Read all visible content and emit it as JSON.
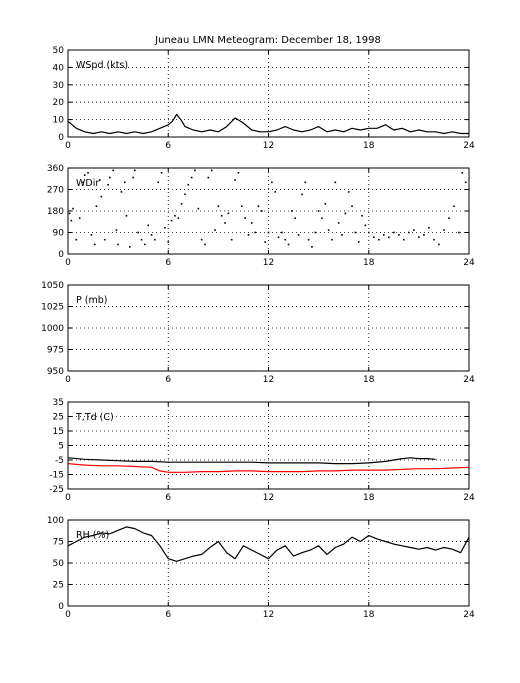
{
  "title": "Juneau LMN Meteogram:  December 18, 1998",
  "chart_data": [
    {
      "type": "line",
      "label": "WSpd (kts)",
      "xlim": [
        0,
        24
      ],
      "xticks": [
        0,
        6,
        12,
        18,
        24
      ],
      "ylim": [
        0,
        50
      ],
      "yticks": [
        0,
        10,
        20,
        30,
        40,
        50
      ],
      "grid": true,
      "series": [
        {
          "color": "#000000",
          "x": [
            0,
            0.5,
            1,
            1.5,
            2,
            2.5,
            3,
            3.5,
            4,
            4.5,
            5,
            5.5,
            6,
            6.25,
            6.5,
            6.75,
            7,
            7.5,
            8,
            8.5,
            9,
            9.5,
            10,
            10.5,
            11,
            11.5,
            12,
            12.5,
            13,
            13.5,
            14,
            14.5,
            15,
            15.5,
            16,
            16.5,
            17,
            17.5,
            18,
            18.5,
            19,
            19.5,
            20,
            20.5,
            21,
            21.5,
            22,
            22.5,
            23,
            23.5,
            24
          ],
          "y": [
            9,
            5,
            3,
            2,
            3,
            2,
            3,
            2,
            3,
            2,
            3,
            5,
            7,
            9,
            13,
            10,
            6,
            4,
            3,
            4,
            3,
            6,
            11,
            8,
            4,
            3,
            3,
            4,
            6,
            4,
            3,
            4,
            6,
            3,
            4,
            3,
            5,
            4,
            5,
            5,
            7,
            4,
            5,
            3,
            4,
            3,
            3,
            2,
            3,
            2,
            2
          ]
        }
      ]
    },
    {
      "type": "scatter",
      "label": "WDir",
      "xlim": [
        0,
        24
      ],
      "xticks": [
        0,
        6,
        12,
        18,
        24
      ],
      "ylim": [
        0,
        360
      ],
      "yticks": [
        0,
        90,
        180,
        270,
        360
      ],
      "grid": true,
      "series": [
        {
          "color": "#000000",
          "x": [
            0.1,
            0.2,
            0.3,
            0.5,
            0.7,
            0.9,
            1.0,
            1.2,
            1.4,
            1.6,
            1.7,
            1.9,
            2.0,
            2.2,
            2.4,
            2.5,
            2.7,
            2.9,
            3.0,
            3.2,
            3.4,
            3.5,
            3.7,
            3.9,
            4.0,
            4.2,
            4.4,
            4.6,
            4.8,
            5.0,
            5.2,
            5.4,
            5.6,
            5.8,
            6.0,
            6.2,
            6.4,
            6.6,
            6.8,
            7.0,
            7.2,
            7.4,
            7.6,
            7.8,
            8.0,
            8.2,
            8.4,
            8.6,
            8.8,
            9.0,
            9.2,
            9.4,
            9.6,
            9.8,
            10.0,
            10.2,
            10.4,
            10.6,
            10.8,
            11.0,
            11.2,
            11.4,
            11.6,
            11.8,
            12.0,
            12.2,
            12.4,
            12.6,
            12.8,
            13.0,
            13.2,
            13.4,
            13.6,
            13.8,
            14.0,
            14.2,
            14.4,
            14.6,
            14.8,
            15.0,
            15.2,
            15.4,
            15.6,
            15.8,
            16.0,
            16.2,
            16.4,
            16.6,
            16.8,
            17.0,
            17.2,
            17.4,
            17.6,
            17.8,
            18.0,
            18.3,
            18.6,
            18.9,
            19.2,
            19.5,
            19.8,
            20.1,
            20.4,
            20.7,
            21.0,
            21.3,
            21.6,
            21.9,
            22.2,
            22.5,
            22.8,
            23.1,
            23.4,
            23.6,
            23.8
          ],
          "y": [
            170,
            140,
            190,
            60,
            150,
            300,
            330,
            340,
            80,
            40,
            200,
            310,
            240,
            60,
            290,
            320,
            350,
            100,
            40,
            260,
            300,
            160,
            30,
            320,
            350,
            90,
            60,
            40,
            120,
            80,
            60,
            300,
            340,
            110,
            50,
            140,
            160,
            150,
            210,
            250,
            290,
            320,
            350,
            190,
            60,
            40,
            320,
            350,
            100,
            200,
            160,
            130,
            170,
            60,
            310,
            340,
            200,
            150,
            80,
            130,
            90,
            200,
            180,
            50,
            90,
            300,
            260,
            70,
            90,
            60,
            40,
            180,
            150,
            80,
            250,
            300,
            60,
            30,
            90,
            180,
            150,
            210,
            100,
            60,
            300,
            130,
            80,
            170,
            260,
            200,
            90,
            50,
            160,
            120,
            90,
            70,
            60,
            80,
            70,
            90,
            80,
            60,
            90,
            100,
            70,
            80,
            110,
            60,
            40,
            100,
            150,
            200,
            90,
            340,
            300
          ]
        }
      ]
    },
    {
      "type": "line",
      "label": "P (mb)",
      "xlim": [
        0,
        24
      ],
      "xticks": [
        0,
        6,
        12,
        18,
        24
      ],
      "ylim": [
        950,
        1050
      ],
      "yticks": [
        950,
        975,
        1000,
        1025,
        1050
      ],
      "grid": true,
      "series": []
    },
    {
      "type": "line",
      "label": "T,Td (C)",
      "xlim": [
        0,
        24
      ],
      "xticks": [
        0,
        6,
        12,
        18,
        24
      ],
      "ylim": [
        -25,
        35
      ],
      "yticks": [
        -25,
        -15,
        -5,
        5,
        15,
        25,
        35
      ],
      "grid": true,
      "series": [
        {
          "color": "#000000",
          "x": [
            0,
            1,
            2,
            3,
            4,
            5,
            6,
            7,
            8,
            9,
            10,
            11,
            12,
            13,
            14,
            15,
            16,
            17,
            18,
            19,
            20,
            20.5,
            21,
            21.5,
            22
          ],
          "y": [
            -3.5,
            -4.5,
            -5,
            -5.5,
            -6,
            -6,
            -6.5,
            -6.5,
            -6.5,
            -6.5,
            -6.5,
            -6.5,
            -7,
            -7,
            -7,
            -7,
            -7.5,
            -7.5,
            -7,
            -6,
            -4,
            -3.5,
            -4,
            -4,
            -4.5
          ]
        },
        {
          "color": "#ff0000",
          "x": [
            0,
            1,
            2,
            3,
            4,
            5,
            5.5,
            6,
            7,
            8,
            9,
            10,
            11,
            12,
            13,
            14,
            15,
            16,
            17,
            18,
            19,
            20,
            21,
            22,
            23,
            24
          ],
          "y": [
            -7.5,
            -8.5,
            -9,
            -9,
            -9.5,
            -10,
            -12.5,
            -13.5,
            -13.5,
            -13,
            -13,
            -12.5,
            -12.5,
            -13,
            -13,
            -13,
            -12.5,
            -12.5,
            -12,
            -12,
            -12,
            -11.5,
            -11,
            -11,
            -10.5,
            -10
          ]
        }
      ]
    },
    {
      "type": "line",
      "label": "RH (%)",
      "xlim": [
        0,
        24
      ],
      "xticks": [
        0,
        6,
        12,
        18,
        24
      ],
      "ylim": [
        0,
        100
      ],
      "yticks": [
        0,
        25,
        50,
        75,
        100
      ],
      "grid": true,
      "series": [
        {
          "color": "#000000",
          "x": [
            0,
            0.5,
            1,
            1.5,
            2,
            2.5,
            3,
            3.5,
            4,
            4.5,
            5,
            5.5,
            6,
            6.5,
            7,
            7.5,
            8,
            8.5,
            9,
            9.5,
            10,
            10.5,
            11,
            11.5,
            12,
            12.5,
            13,
            13.5,
            14,
            14.5,
            15,
            15.5,
            16,
            16.5,
            17,
            17.5,
            18,
            18.5,
            19,
            19.5,
            20,
            20.5,
            21,
            21.5,
            22,
            22.5,
            23,
            23.5,
            24
          ],
          "y": [
            70,
            75,
            80,
            82,
            85,
            84,
            88,
            92,
            90,
            85,
            82,
            70,
            55,
            52,
            55,
            58,
            60,
            68,
            75,
            62,
            55,
            70,
            65,
            60,
            55,
            65,
            70,
            58,
            62,
            65,
            70,
            60,
            68,
            72,
            80,
            75,
            82,
            78,
            75,
            72,
            70,
            68,
            66,
            68,
            65,
            68,
            66,
            62,
            80
          ]
        }
      ]
    }
  ]
}
